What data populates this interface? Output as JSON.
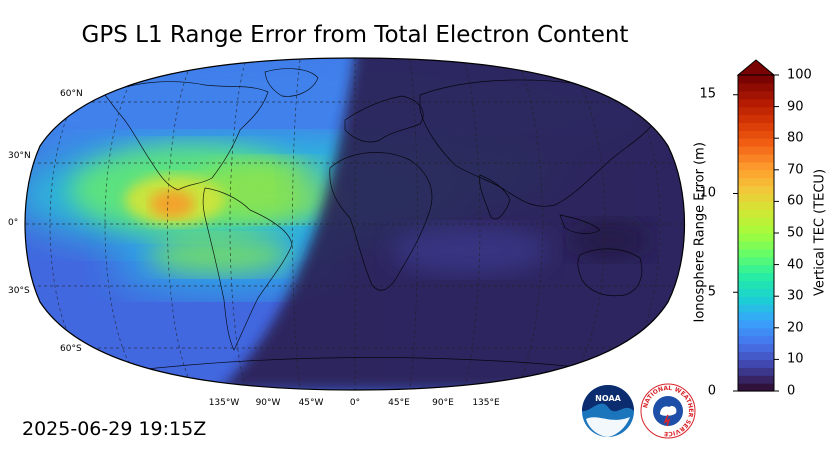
{
  "title": "GPS L1 Range Error from Total Electron Content",
  "timestamp": "2025-06-29 19:15Z",
  "map": {
    "projection": "robinson",
    "lat_ticks": [
      "60°N",
      "30°N",
      "0°",
      "30°S",
      "60°S"
    ],
    "lon_ticks": [
      "135°W",
      "90°W",
      "45°W",
      "0°",
      "45°E",
      "90°E",
      "135°E"
    ],
    "grid": true
  },
  "colorbar": {
    "left_label": "Ionosphere Range Error (m)",
    "right_label": "Vertical TEC (TECU)",
    "left_ticks": [
      "0",
      "5",
      "10",
      "15"
    ],
    "right_ticks": [
      "0",
      "10",
      "20",
      "30",
      "40",
      "50",
      "60",
      "70",
      "80",
      "90",
      "100"
    ],
    "extend": "max",
    "colormap": [
      "#30123b",
      "#4145ab",
      "#4675ed",
      "#39a2fc",
      "#1bcfd4",
      "#24eca6",
      "#61fc6c",
      "#a4fc3b",
      "#d1e834",
      "#f3c63a",
      "#fe9b2d",
      "#f36315",
      "#d93806",
      "#b11901",
      "#7a0403"
    ]
  },
  "logos": {
    "noaa_text": "NOAA",
    "nws_text": "NATIONAL WEATHER SERVICE"
  },
  "colors": {
    "night_shade": "#2b1f4e",
    "day_background": "#4268e0",
    "hotspot": "#f5a02a"
  }
}
